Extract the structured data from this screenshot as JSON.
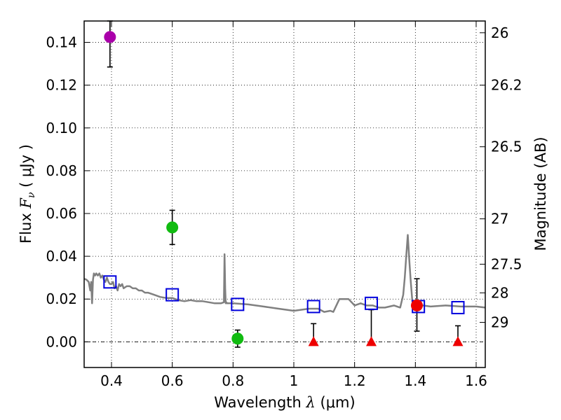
{
  "chart_data": {
    "type": "scatter",
    "xlabel": {
      "prefix": "Wavelength  ",
      "symbol": "λ",
      "unit": " (μm)"
    },
    "ylabel": {
      "prefix": "Flux  ",
      "symbol": "F",
      "subscript": "ν",
      "unit": "  ( μJy )"
    },
    "ylabel_right": "Magnitude (AB)",
    "xlim": [
      0.31,
      1.63
    ],
    "ylim": [
      -0.012,
      0.15
    ],
    "grid": true,
    "x_ticks": [
      {
        "value": 0.4,
        "label": "0.4"
      },
      {
        "value": 0.6,
        "label": "0.6"
      },
      {
        "value": 0.8,
        "label": "0.8"
      },
      {
        "value": 1.0,
        "label": "1"
      },
      {
        "value": 1.2,
        "label": "1.2"
      },
      {
        "value": 1.4,
        "label": "1.4"
      },
      {
        "value": 1.6,
        "label": "1.6"
      }
    ],
    "y_ticks": [
      {
        "value": 0.0,
        "label": "0.00"
      },
      {
        "value": 0.02,
        "label": "0.02"
      },
      {
        "value": 0.04,
        "label": "0.04"
      },
      {
        "value": 0.06,
        "label": "0.06"
      },
      {
        "value": 0.08,
        "label": "0.08"
      },
      {
        "value": 0.1,
        "label": "0.10"
      },
      {
        "value": 0.12,
        "label": "0.12"
      },
      {
        "value": 0.14,
        "label": "0.14"
      }
    ],
    "mag_ticks": [
      {
        "flux": 0.1445,
        "label": "26"
      },
      {
        "flux": 0.12,
        "label": "26.2"
      },
      {
        "flux": 0.0912,
        "label": "26.5"
      },
      {
        "flux": 0.0575,
        "label": "27"
      },
      {
        "flux": 0.0363,
        "label": "27.5"
      },
      {
        "flux": 0.0229,
        "label": "28"
      },
      {
        "flux": 0.0091,
        "label": "29"
      }
    ],
    "model_spectrum": {
      "name": "model SED",
      "color": "#808080",
      "x": [
        0.31,
        0.318,
        0.325,
        0.33,
        0.333,
        0.336,
        0.339,
        0.342,
        0.346,
        0.35,
        0.355,
        0.36,
        0.365,
        0.37,
        0.375,
        0.38,
        0.385,
        0.39,
        0.395,
        0.4,
        0.405,
        0.41,
        0.415,
        0.42,
        0.425,
        0.43,
        0.435,
        0.44,
        0.45,
        0.46,
        0.47,
        0.48,
        0.49,
        0.5,
        0.51,
        0.52,
        0.54,
        0.56,
        0.58,
        0.6,
        0.62,
        0.64,
        0.66,
        0.68,
        0.7,
        0.72,
        0.74,
        0.76,
        0.77,
        0.772,
        0.774,
        0.776,
        0.778,
        0.78,
        0.8,
        0.85,
        0.9,
        0.95,
        1.0,
        1.05,
        1.08,
        1.1,
        1.12,
        1.13,
        1.15,
        1.18,
        1.2,
        1.22,
        1.24,
        1.26,
        1.28,
        1.3,
        1.33,
        1.35,
        1.36,
        1.365,
        1.37,
        1.375,
        1.38,
        1.385,
        1.39,
        1.4,
        1.45,
        1.5,
        1.55,
        1.6,
        1.63
      ],
      "y": [
        0.0295,
        0.029,
        0.028,
        0.024,
        0.028,
        0.018,
        0.029,
        0.032,
        0.031,
        0.032,
        0.031,
        0.032,
        0.03,
        0.031,
        0.029,
        0.028,
        0.03,
        0.028,
        0.027,
        0.027,
        0.028,
        0.025,
        0.026,
        0.024,
        0.027,
        0.026,
        0.027,
        0.025,
        0.026,
        0.026,
        0.025,
        0.025,
        0.024,
        0.024,
        0.023,
        0.023,
        0.022,
        0.021,
        0.0205,
        0.0205,
        0.0195,
        0.019,
        0.0195,
        0.019,
        0.019,
        0.0185,
        0.018,
        0.018,
        0.0185,
        0.041,
        0.025,
        0.018,
        0.0185,
        0.018,
        0.018,
        0.0175,
        0.0165,
        0.0155,
        0.0145,
        0.0155,
        0.0155,
        0.014,
        0.0145,
        0.014,
        0.02,
        0.02,
        0.017,
        0.018,
        0.017,
        0.017,
        0.016,
        0.016,
        0.017,
        0.016,
        0.022,
        0.03,
        0.04,
        0.05,
        0.038,
        0.028,
        0.019,
        0.0175,
        0.0165,
        0.017,
        0.0165,
        0.0165,
        0.016
      ]
    },
    "model_photometry": {
      "name": "model band flux",
      "color": "#0000dd",
      "x": [
        0.395,
        0.6,
        0.815,
        1.065,
        1.255,
        1.41,
        1.54
      ],
      "y": [
        0.028,
        0.022,
        0.0175,
        0.0165,
        0.018,
        0.0165,
        0.016
      ]
    },
    "detections": [
      {
        "x": 0.395,
        "y": 0.1425,
        "err_low": 0.1285,
        "err_high": 0.15,
        "color": "#aa00aa"
      },
      {
        "x": 0.6,
        "y": 0.0535,
        "err_low": 0.0455,
        "err_high": 0.0615,
        "color": "#11bb11"
      },
      {
        "x": 0.815,
        "y": 0.0015,
        "err_low": -0.0025,
        "err_high": 0.0055,
        "color": "#11bb11"
      },
      {
        "x": 1.405,
        "y": 0.017,
        "err_low": 0.005,
        "err_high": 0.0295,
        "color": "#ee0000"
      }
    ],
    "upper_limits": [
      {
        "x": 1.065,
        "y": 0.0,
        "err_high": 0.0085,
        "color": "#ee0000"
      },
      {
        "x": 1.255,
        "y": 0.0,
        "err_high": 0.015,
        "color": "#ee0000"
      },
      {
        "x": 1.54,
        "y": 0.0,
        "err_high": 0.0075,
        "color": "#ee0000"
      }
    ]
  }
}
